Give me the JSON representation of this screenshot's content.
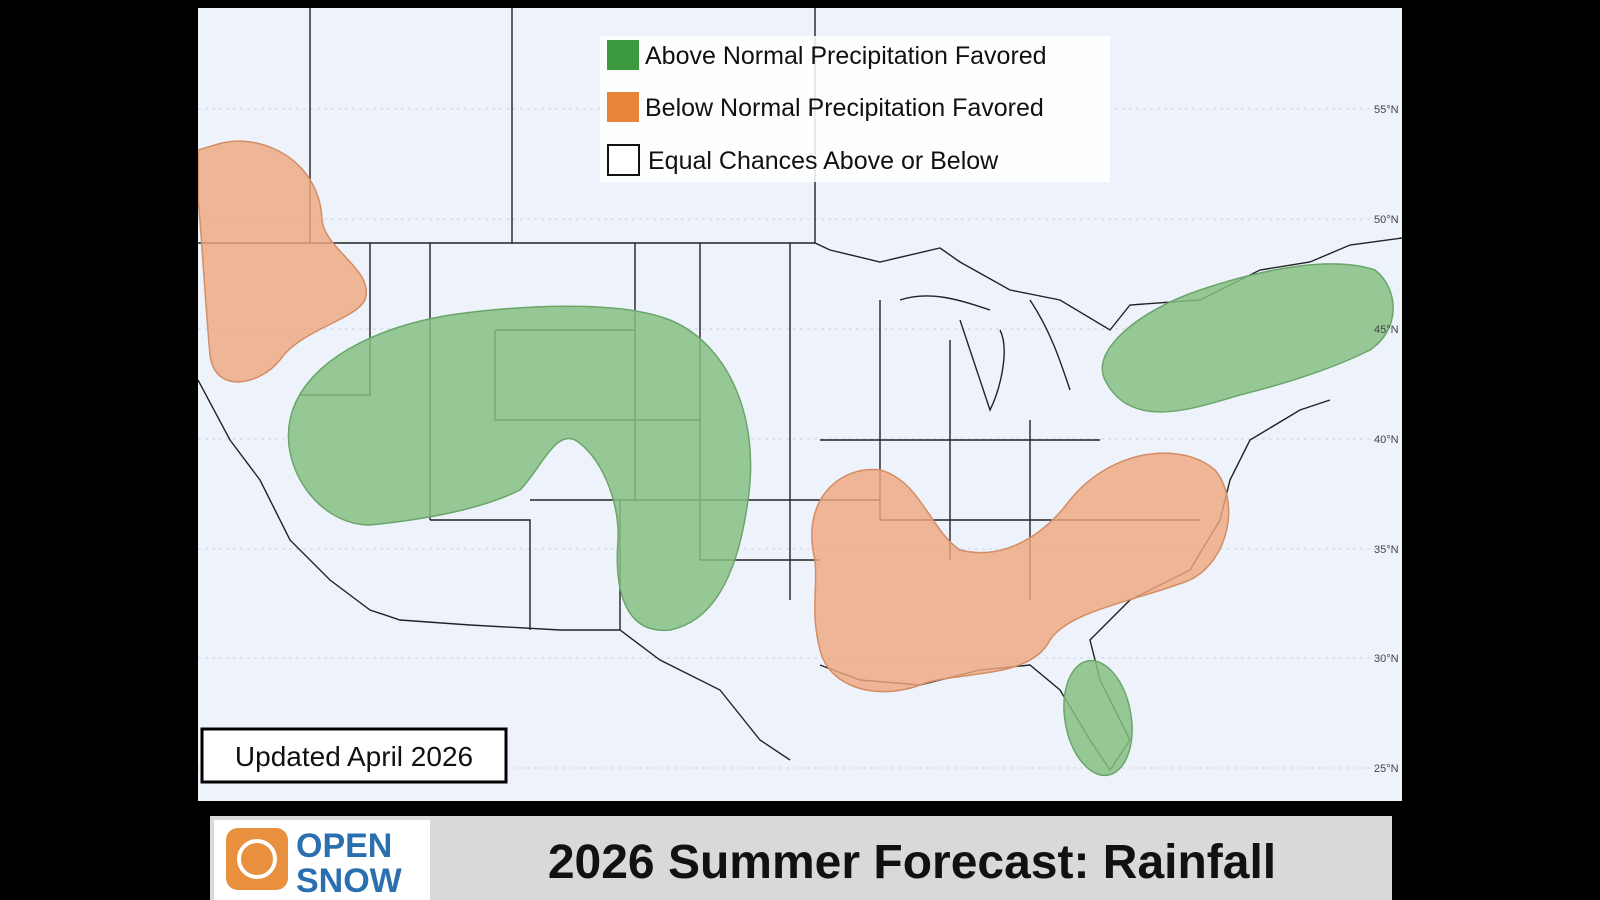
{
  "legend": {
    "items": [
      "Above Normal Precipitation Favored",
      "Below Normal Precipitation Favored",
      "Equal Chances Above or Below"
    ]
  },
  "latitude_labels": [
    "55°N",
    "50°N",
    "45°N",
    "40°N",
    "35°N",
    "30°N",
    "25°N"
  ],
  "updated": "Updated April 2026",
  "logo": {
    "line1": "OPEN",
    "line2": "SNOW"
  },
  "title": "2026 Summer Forecast: Rainfall"
}
